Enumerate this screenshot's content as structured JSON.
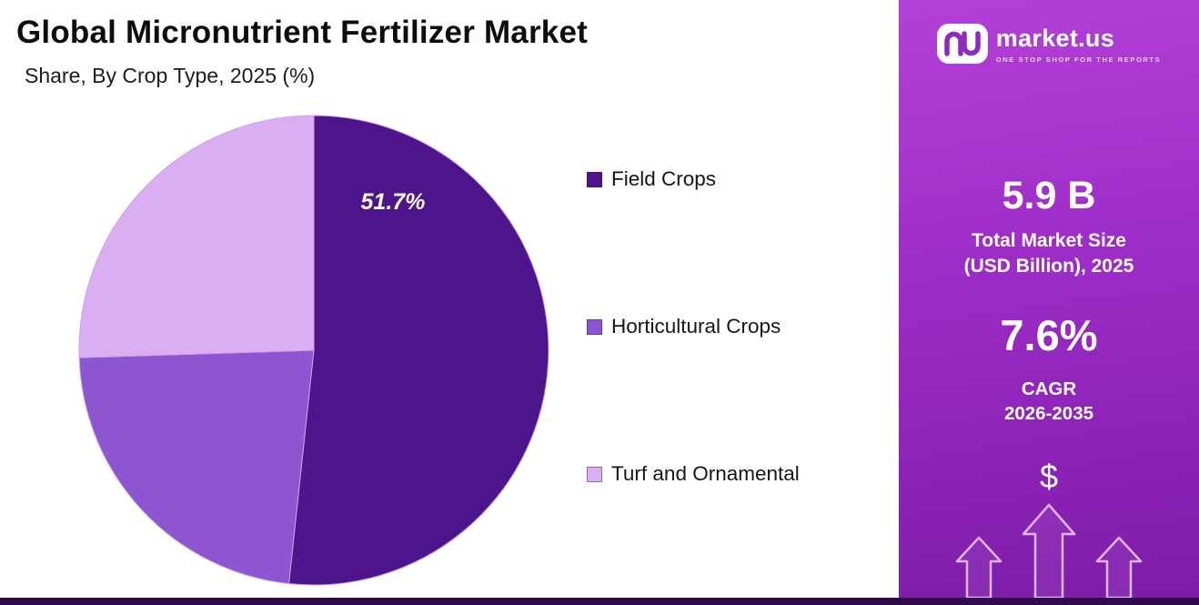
{
  "header": {
    "title": "Global Micronutrient Fertilizer Market",
    "subtitle": "Share, By Crop Type, 2025 (%)"
  },
  "chart_data": {
    "type": "pie",
    "title": "Global Micronutrient Fertilizer Market",
    "subtitle": "Share, By Crop Type, 2025 (%)",
    "unit": "%",
    "start_angle_deg": 0,
    "direction": "clockwise",
    "legend_position": "right",
    "slices": [
      {
        "label": "Field Crops",
        "value": 51.7,
        "color": "#4e148c",
        "data_label": "51.7%"
      },
      {
        "label": "Horticultural Crops",
        "value": 22.8,
        "color": "#8d55cf",
        "data_label": ""
      },
      {
        "label": "Turf and Ornamental",
        "value": 25.5,
        "color": "#d9aff2",
        "data_label": ""
      }
    ]
  },
  "sidebar": {
    "logo": {
      "brand": "market.us",
      "tagline": "ONE STOP SHOP FOR THE REPORTS",
      "icon": "market-us-cloud-icon"
    },
    "stats": [
      {
        "value": "5.9 B",
        "label_lines": [
          "Total Market Size",
          "(USD Billion), 2025"
        ]
      },
      {
        "value": "7.6%",
        "label_lines": [
          "CAGR",
          "2026-2035"
        ]
      }
    ],
    "dollar_symbol": "$"
  },
  "colors": {
    "sidebar_top": "#b440d8",
    "sidebar_bottom": "#7d1ba8",
    "pie_dark": "#4e148c",
    "pie_medium": "#8d55cf",
    "pie_light": "#d9aff2",
    "bottom_bar": "#310a4c",
    "slice_stroke": "#c9a2ec"
  }
}
